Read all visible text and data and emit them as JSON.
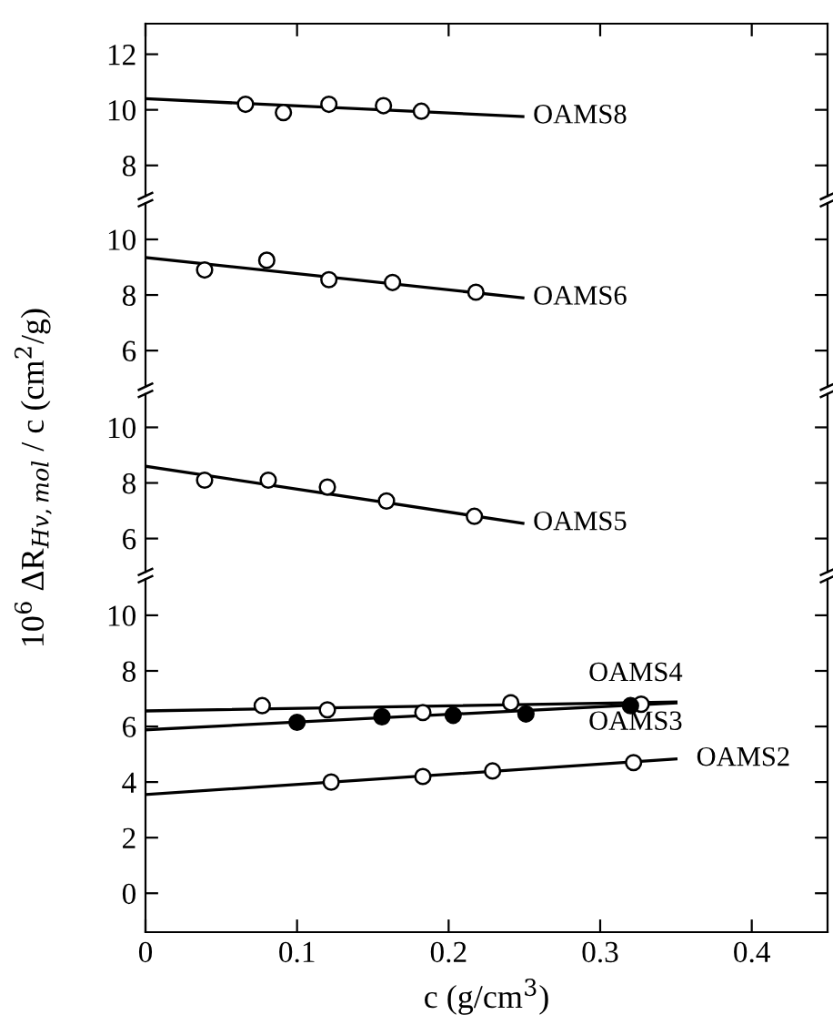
{
  "chart_data": [
    {
      "type": "scatter",
      "xlim": [
        0,
        0.45
      ],
      "xticks": [
        0,
        0.1,
        0.2,
        0.3,
        0.4
      ],
      "ylim": [
        6.9,
        13.1
      ],
      "yticks": [
        8,
        10,
        12
      ],
      "tick_labels": "y",
      "marker": "circle",
      "series": [
        {
          "type": "scatter",
          "name": "OAMS8",
          "color": "#ffffff",
          "x": [
            0.066,
            0.091,
            0.121,
            0.157,
            0.182
          ],
          "values": [
            10.2,
            9.9,
            10.2,
            10.15,
            9.95
          ]
        },
        {
          "type": "line",
          "color": "#000000",
          "line_style": "solid",
          "marker": "none",
          "x": [
            0,
            0.249
          ],
          "values": [
            10.4,
            9.76
          ]
        }
      ]
    },
    {
      "type": "scatter",
      "xlim": [
        0,
        0.45
      ],
      "xticks": [
        0,
        0.1,
        0.2,
        0.3,
        0.4
      ],
      "ylim": [
        4.7,
        11.3
      ],
      "yticks": [
        6,
        8,
        10
      ],
      "tick_labels": "y",
      "marker": "circle",
      "series": [
        {
          "type": "scatter",
          "name": "OAMS6",
          "color": "#ffffff",
          "x": [
            0.039,
            0.08,
            0.121,
            0.163,
            0.218
          ],
          "values": [
            8.9,
            9.25,
            8.55,
            8.45,
            8.1
          ]
        },
        {
          "type": "line",
          "color": "#000000",
          "line_style": "solid",
          "marker": "none",
          "x": [
            0,
            0.249
          ],
          "values": [
            9.35,
            7.9
          ]
        }
      ]
    },
    {
      "type": "scatter",
      "xlim": [
        0,
        0.45
      ],
      "xticks": [
        0,
        0.1,
        0.2,
        0.3,
        0.4
      ],
      "ylim": [
        4.8,
        11.2
      ],
      "yticks": [
        6,
        8,
        10
      ],
      "tick_labels": "y",
      "marker": "circle",
      "series": [
        {
          "type": "scatter",
          "name": "OAMS5",
          "color": "#ffffff",
          "x": [
            0.039,
            0.081,
            0.12,
            0.159,
            0.217
          ],
          "values": [
            8.1,
            8.1,
            7.85,
            7.35,
            6.8
          ]
        },
        {
          "type": "line",
          "color": "#000000",
          "line_style": "solid",
          "marker": "none",
          "x": [
            0,
            0.249
          ],
          "values": [
            8.6,
            6.55
          ]
        }
      ]
    },
    {
      "type": "scatter",
      "xlabel": "c (g/cm$^{3}$)",
      "ylabel": "10$^{6}$ ΔR$_{Hv,mol}$ / c (cm$^{2}$/g)",
      "xlim": [
        0,
        0.45
      ],
      "xticks": [
        0,
        0.1,
        0.2,
        0.3,
        0.4
      ],
      "ylim": [
        -1.4,
        11.3
      ],
      "yticks": [
        0,
        2,
        4,
        6,
        8,
        10
      ],
      "marker": "circle",
      "series": [
        {
          "type": "scatter",
          "name": "OAMS4",
          "color": "#ffffff",
          "x": [
            0.077,
            0.12,
            0.183,
            0.241,
            0.327
          ],
          "values": [
            6.75,
            6.6,
            6.5,
            6.85,
            6.8
          ]
        },
        {
          "type": "line",
          "color": "#000000",
          "line_style": "solid",
          "marker": "none",
          "x": [
            0,
            0.35
          ],
          "values": [
            6.56,
            6.88
          ]
        },
        {
          "type": "scatter",
          "name": "OAMS3",
          "color": "#000000",
          "x": [
            0.1,
            0.156,
            0.203,
            0.251,
            0.32
          ],
          "values": [
            6.15,
            6.35,
            6.4,
            6.45,
            6.75
          ]
        },
        {
          "type": "line",
          "color": "#000000",
          "line_style": "solid",
          "marker": "none",
          "x": [
            0,
            0.35
          ],
          "values": [
            5.88,
            6.85
          ]
        },
        {
          "type": "scatter",
          "name": "OAMS2",
          "color": "#ffffff",
          "x": [
            0.1225,
            0.183,
            0.229,
            0.322
          ],
          "values": [
            4.0,
            4.2,
            4.4,
            4.7
          ]
        },
        {
          "type": "line",
          "color": "#000000",
          "line_style": "solid",
          "marker": "none",
          "x": [
            0,
            0.35
          ],
          "values": [
            3.55,
            4.83
          ]
        }
      ]
    }
  ]
}
